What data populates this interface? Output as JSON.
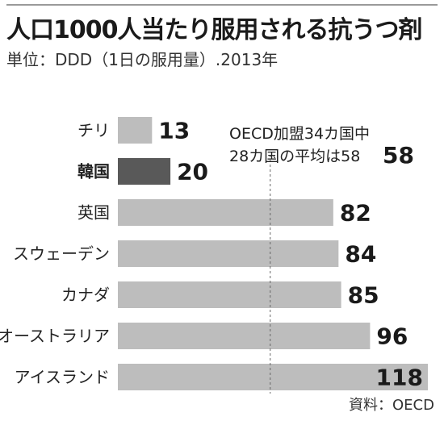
{
  "chart_data": {
    "type": "bar",
    "orientation": "horizontal",
    "title": "人口1000人当たり服用される抗うつ剤",
    "subtitle": "単位：DDD（1日の服用量）.2013年",
    "categories": [
      "チリ",
      "韓国",
      "英国",
      "スウェーデン",
      "カナダ",
      "オーストラリア",
      "アイスランド"
    ],
    "values": [
      13,
      20,
      82,
      84,
      85,
      96,
      118
    ],
    "value_labels": [
      "13",
      "20",
      "82",
      "84",
      "85",
      "96",
      "118"
    ],
    "highlight_category": "韓国",
    "reference_line": {
      "value": 58,
      "label_line1": "OECD加盟34カ国中",
      "label_line2": "28カ国の平均は58",
      "value_label": "58"
    },
    "xlim": [
      0,
      118
    ],
    "grid": false,
    "source": "資料：OECD",
    "colors": {
      "bar": "#bdbdbd",
      "highlight": "#595959",
      "reference_line": "#666666"
    }
  }
}
